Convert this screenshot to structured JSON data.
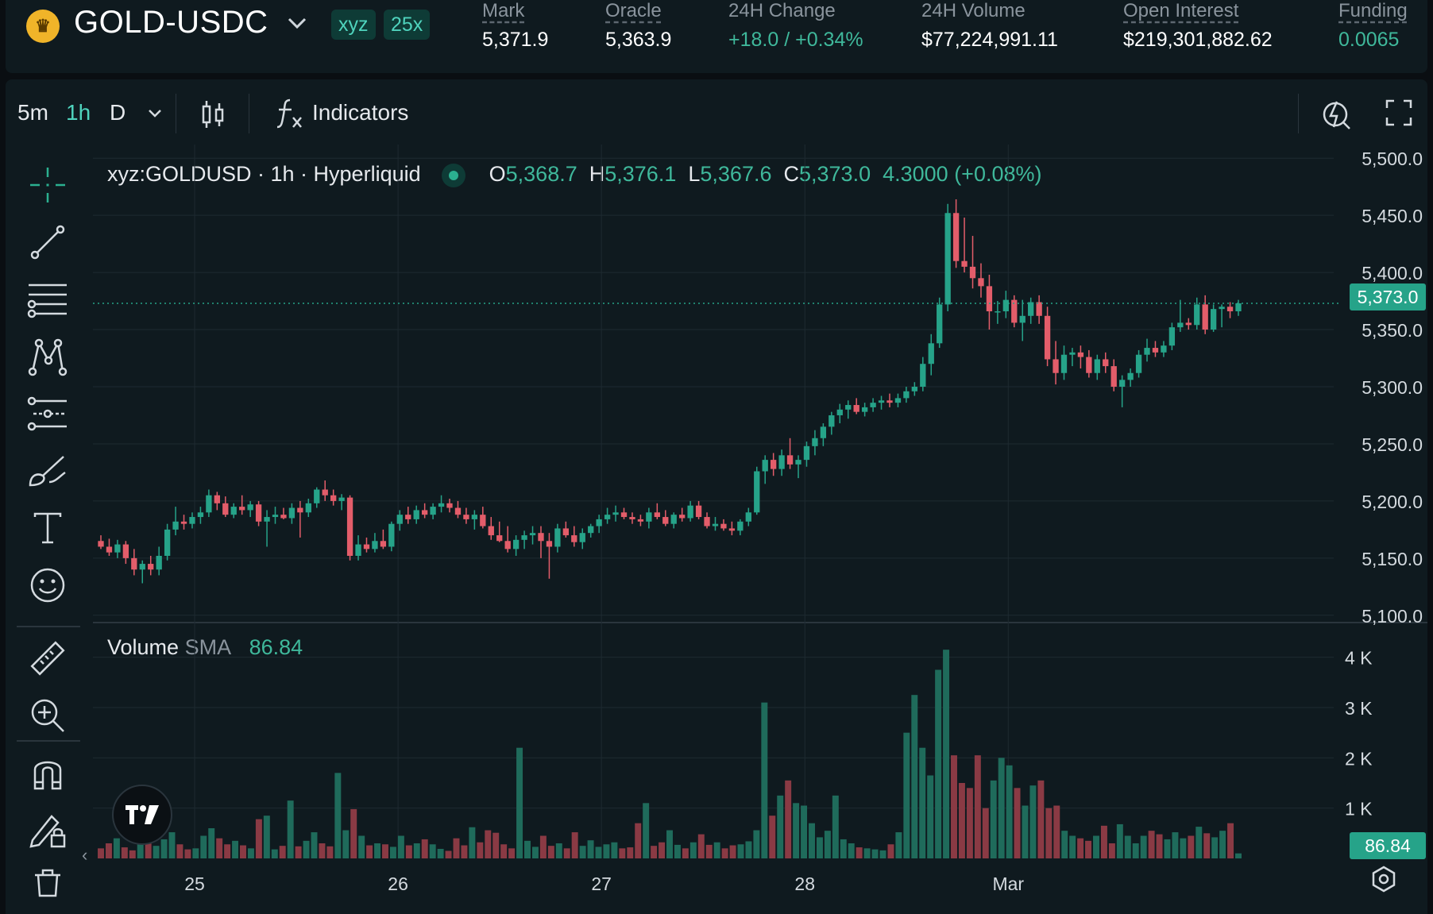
{
  "header": {
    "pair": "GOLD-USDC",
    "tags": [
      "xyz",
      "25x"
    ],
    "stats": [
      {
        "label": "Mark",
        "value": "5,371.9"
      },
      {
        "label": "Oracle",
        "value": "5,363.9"
      },
      {
        "label": "24H Change",
        "value": "+18.0 / +0.34%"
      },
      {
        "label": "24H Volume",
        "value": "$77,224,991.11"
      },
      {
        "label": "Open Interest",
        "value": "$219,301,882.62"
      },
      {
        "label": "Funding",
        "value": "0.0065"
      }
    ]
  },
  "toolbar": {
    "intervals": [
      "5m",
      "1h",
      "D"
    ],
    "active_interval": "1h",
    "indicators_label": "Indicators"
  },
  "legend": {
    "symbol": "xyz:GOLDUSD · 1h · Hyperliquid",
    "o_label": "O",
    "o": "5,368.7",
    "h_label": "H",
    "h": "5,376.1",
    "l_label": "L",
    "l": "5,367.6",
    "c_label": "C",
    "c": "5,373.0",
    "change": "4.3000 (+0.08%)"
  },
  "volume_legend": {
    "label": "Volume",
    "sma_label": "SMA",
    "sma": "86.84"
  },
  "colors": {
    "up": "#26a389",
    "down": "#e35d6a",
    "bg": "#0f1a1f",
    "accent": "#4fd3bd"
  },
  "icons": [
    "crosshair-icon",
    "trend-line-icon",
    "fib-lines-icon",
    "pattern-icon",
    "forecast-icon",
    "brush-icon",
    "text-icon",
    "emoji-icon",
    "ruler-icon",
    "zoom-in-icon",
    "magnet-icon",
    "lock-drawing-icon",
    "candles-icon",
    "fx-icon",
    "lightning-icon",
    "fullscreen-icon",
    "settings-icon",
    "tradingview-logo-icon"
  ],
  "chart_data": [
    {
      "type": "candlestick",
      "x_ticks": [
        "25",
        "26",
        "27",
        "28",
        "Mar"
      ],
      "y_ticks": [
        "5,500.0",
        "5,450.0",
        "5,400.0",
        "5,350.0",
        "5,300.0",
        "5,250.0",
        "5,200.0",
        "5,150.0",
        "5,100.0"
      ],
      "ylim": [
        5095,
        5505
      ],
      "last_price": 5373.0,
      "last_price_label": "5,373.0",
      "x_range_days": [
        24.5,
        30.6
      ],
      "candles": [
        {
          "o": 5165,
          "h": 5170,
          "l": 5158,
          "c": 5160
        },
        {
          "o": 5160,
          "h": 5167,
          "l": 5152,
          "c": 5155
        },
        {
          "o": 5155,
          "h": 5166,
          "l": 5150,
          "c": 5162
        },
        {
          "o": 5162,
          "h": 5165,
          "l": 5145,
          "c": 5150
        },
        {
          "o": 5150,
          "h": 5158,
          "l": 5135,
          "c": 5140
        },
        {
          "o": 5140,
          "h": 5148,
          "l": 5128,
          "c": 5145
        },
        {
          "o": 5145,
          "h": 5152,
          "l": 5135,
          "c": 5140
        },
        {
          "o": 5140,
          "h": 5160,
          "l": 5135,
          "c": 5152
        },
        {
          "o": 5152,
          "h": 5180,
          "l": 5148,
          "c": 5175
        },
        {
          "o": 5175,
          "h": 5195,
          "l": 5170,
          "c": 5182
        },
        {
          "o": 5182,
          "h": 5188,
          "l": 5175,
          "c": 5180
        },
        {
          "o": 5180,
          "h": 5190,
          "l": 5176,
          "c": 5186
        },
        {
          "o": 5186,
          "h": 5195,
          "l": 5180,
          "c": 5190
        },
        {
          "o": 5190,
          "h": 5210,
          "l": 5186,
          "c": 5205
        },
        {
          "o": 5205,
          "h": 5208,
          "l": 5192,
          "c": 5198
        },
        {
          "o": 5198,
          "h": 5204,
          "l": 5186,
          "c": 5188
        },
        {
          "o": 5188,
          "h": 5198,
          "l": 5185,
          "c": 5195
        },
        {
          "o": 5195,
          "h": 5205,
          "l": 5188,
          "c": 5192
        },
        {
          "o": 5192,
          "h": 5200,
          "l": 5186,
          "c": 5197
        },
        {
          "o": 5197,
          "h": 5200,
          "l": 5178,
          "c": 5182
        },
        {
          "o": 5182,
          "h": 5192,
          "l": 5160,
          "c": 5186
        },
        {
          "o": 5186,
          "h": 5195,
          "l": 5180,
          "c": 5188
        },
        {
          "o": 5188,
          "h": 5194,
          "l": 5184,
          "c": 5185
        },
        {
          "o": 5185,
          "h": 5198,
          "l": 5180,
          "c": 5194
        },
        {
          "o": 5194,
          "h": 5200,
          "l": 5168,
          "c": 5190
        },
        {
          "o": 5190,
          "h": 5202,
          "l": 5186,
          "c": 5198
        },
        {
          "o": 5198,
          "h": 5212,
          "l": 5194,
          "c": 5210
        },
        {
          "o": 5210,
          "h": 5218,
          "l": 5200,
          "c": 5205
        },
        {
          "o": 5205,
          "h": 5210,
          "l": 5196,
          "c": 5200
        },
        {
          "o": 5200,
          "h": 5206,
          "l": 5192,
          "c": 5203
        },
        {
          "o": 5203,
          "h": 5205,
          "l": 5148,
          "c": 5152
        },
        {
          "o": 5152,
          "h": 5170,
          "l": 5148,
          "c": 5162
        },
        {
          "o": 5162,
          "h": 5168,
          "l": 5155,
          "c": 5158
        },
        {
          "o": 5158,
          "h": 5172,
          "l": 5155,
          "c": 5165
        },
        {
          "o": 5165,
          "h": 5175,
          "l": 5158,
          "c": 5160
        },
        {
          "o": 5160,
          "h": 5182,
          "l": 5156,
          "c": 5180
        },
        {
          "o": 5180,
          "h": 5192,
          "l": 5174,
          "c": 5188
        },
        {
          "o": 5188,
          "h": 5195,
          "l": 5180,
          "c": 5184
        },
        {
          "o": 5184,
          "h": 5196,
          "l": 5180,
          "c": 5192
        },
        {
          "o": 5192,
          "h": 5198,
          "l": 5185,
          "c": 5188
        },
        {
          "o": 5188,
          "h": 5198,
          "l": 5184,
          "c": 5195
        },
        {
          "o": 5195,
          "h": 5205,
          "l": 5190,
          "c": 5198
        },
        {
          "o": 5198,
          "h": 5202,
          "l": 5190,
          "c": 5194
        },
        {
          "o": 5194,
          "h": 5200,
          "l": 5185,
          "c": 5188
        },
        {
          "o": 5188,
          "h": 5194,
          "l": 5180,
          "c": 5184
        },
        {
          "o": 5184,
          "h": 5192,
          "l": 5175,
          "c": 5188
        },
        {
          "o": 5188,
          "h": 5195,
          "l": 5176,
          "c": 5178
        },
        {
          "o": 5178,
          "h": 5186,
          "l": 5166,
          "c": 5170
        },
        {
          "o": 5170,
          "h": 5182,
          "l": 5164,
          "c": 5165
        },
        {
          "o": 5165,
          "h": 5178,
          "l": 5155,
          "c": 5158
        },
        {
          "o": 5158,
          "h": 5170,
          "l": 5152,
          "c": 5166
        },
        {
          "o": 5166,
          "h": 5174,
          "l": 5158,
          "c": 5170
        },
        {
          "o": 5170,
          "h": 5178,
          "l": 5162,
          "c": 5172
        },
        {
          "o": 5172,
          "h": 5178,
          "l": 5150,
          "c": 5165
        },
        {
          "o": 5165,
          "h": 5172,
          "l": 5132,
          "c": 5160
        },
        {
          "o": 5160,
          "h": 5180,
          "l": 5155,
          "c": 5176
        },
        {
          "o": 5176,
          "h": 5182,
          "l": 5168,
          "c": 5170
        },
        {
          "o": 5170,
          "h": 5178,
          "l": 5160,
          "c": 5164
        },
        {
          "o": 5164,
          "h": 5176,
          "l": 5158,
          "c": 5172
        },
        {
          "o": 5172,
          "h": 5180,
          "l": 5168,
          "c": 5178
        },
        {
          "o": 5178,
          "h": 5188,
          "l": 5172,
          "c": 5184
        },
        {
          "o": 5184,
          "h": 5194,
          "l": 5180,
          "c": 5188
        },
        {
          "o": 5188,
          "h": 5196,
          "l": 5182,
          "c": 5190
        },
        {
          "o": 5190,
          "h": 5194,
          "l": 5184,
          "c": 5186
        },
        {
          "o": 5186,
          "h": 5190,
          "l": 5180,
          "c": 5184
        },
        {
          "o": 5184,
          "h": 5188,
          "l": 5178,
          "c": 5182
        },
        {
          "o": 5182,
          "h": 5194,
          "l": 5176,
          "c": 5190
        },
        {
          "o": 5190,
          "h": 5198,
          "l": 5184,
          "c": 5186
        },
        {
          "o": 5186,
          "h": 5192,
          "l": 5178,
          "c": 5180
        },
        {
          "o": 5180,
          "h": 5190,
          "l": 5176,
          "c": 5188
        },
        {
          "o": 5188,
          "h": 5194,
          "l": 5182,
          "c": 5185
        },
        {
          "o": 5185,
          "h": 5200,
          "l": 5182,
          "c": 5196
        },
        {
          "o": 5196,
          "h": 5200,
          "l": 5184,
          "c": 5186
        },
        {
          "o": 5186,
          "h": 5190,
          "l": 5176,
          "c": 5178
        },
        {
          "o": 5178,
          "h": 5186,
          "l": 5174,
          "c": 5180
        },
        {
          "o": 5180,
          "h": 5184,
          "l": 5174,
          "c": 5176
        },
        {
          "o": 5176,
          "h": 5182,
          "l": 5170,
          "c": 5174
        },
        {
          "o": 5174,
          "h": 5184,
          "l": 5170,
          "c": 5182
        },
        {
          "o": 5182,
          "h": 5194,
          "l": 5178,
          "c": 5190
        },
        {
          "o": 5190,
          "h": 5230,
          "l": 5188,
          "c": 5226
        },
        {
          "o": 5226,
          "h": 5240,
          "l": 5215,
          "c": 5236
        },
        {
          "o": 5236,
          "h": 5242,
          "l": 5222,
          "c": 5228
        },
        {
          "o": 5228,
          "h": 5245,
          "l": 5222,
          "c": 5240
        },
        {
          "o": 5240,
          "h": 5255,
          "l": 5228,
          "c": 5232
        },
        {
          "o": 5232,
          "h": 5240,
          "l": 5220,
          "c": 5236
        },
        {
          "o": 5236,
          "h": 5252,
          "l": 5230,
          "c": 5248
        },
        {
          "o": 5248,
          "h": 5262,
          "l": 5240,
          "c": 5255
        },
        {
          "o": 5255,
          "h": 5268,
          "l": 5248,
          "c": 5265
        },
        {
          "o": 5265,
          "h": 5278,
          "l": 5258,
          "c": 5275
        },
        {
          "o": 5275,
          "h": 5285,
          "l": 5268,
          "c": 5280
        },
        {
          "o": 5280,
          "h": 5288,
          "l": 5272,
          "c": 5284
        },
        {
          "o": 5284,
          "h": 5290,
          "l": 5276,
          "c": 5278
        },
        {
          "o": 5278,
          "h": 5286,
          "l": 5274,
          "c": 5282
        },
        {
          "o": 5282,
          "h": 5290,
          "l": 5278,
          "c": 5286
        },
        {
          "o": 5286,
          "h": 5292,
          "l": 5280,
          "c": 5288
        },
        {
          "o": 5288,
          "h": 5294,
          "l": 5282,
          "c": 5286
        },
        {
          "o": 5286,
          "h": 5294,
          "l": 5282,
          "c": 5290
        },
        {
          "o": 5290,
          "h": 5300,
          "l": 5286,
          "c": 5296
        },
        {
          "o": 5296,
          "h": 5304,
          "l": 5292,
          "c": 5300
        },
        {
          "o": 5300,
          "h": 5326,
          "l": 5296,
          "c": 5320
        },
        {
          "o": 5320,
          "h": 5346,
          "l": 5310,
          "c": 5338
        },
        {
          "o": 5338,
          "h": 5378,
          "l": 5334,
          "c": 5372
        },
        {
          "o": 5372,
          "h": 5460,
          "l": 5366,
          "c": 5452
        },
        {
          "o": 5452,
          "h": 5464,
          "l": 5404,
          "c": 5410
        },
        {
          "o": 5410,
          "h": 5448,
          "l": 5400,
          "c": 5405
        },
        {
          "o": 5405,
          "h": 5432,
          "l": 5386,
          "c": 5395
        },
        {
          "o": 5395,
          "h": 5408,
          "l": 5378,
          "c": 5388
        },
        {
          "o": 5388,
          "h": 5398,
          "l": 5350,
          "c": 5366
        },
        {
          "o": 5366,
          "h": 5375,
          "l": 5355,
          "c": 5366
        },
        {
          "o": 5366,
          "h": 5384,
          "l": 5360,
          "c": 5376
        },
        {
          "o": 5376,
          "h": 5380,
          "l": 5352,
          "c": 5356
        },
        {
          "o": 5356,
          "h": 5376,
          "l": 5340,
          "c": 5362
        },
        {
          "o": 5362,
          "h": 5378,
          "l": 5355,
          "c": 5374
        },
        {
          "o": 5374,
          "h": 5380,
          "l": 5355,
          "c": 5362
        },
        {
          "o": 5362,
          "h": 5370,
          "l": 5318,
          "c": 5324
        },
        {
          "o": 5324,
          "h": 5340,
          "l": 5302,
          "c": 5312
        },
        {
          "o": 5312,
          "h": 5336,
          "l": 5306,
          "c": 5328
        },
        {
          "o": 5328,
          "h": 5334,
          "l": 5318,
          "c": 5330
        },
        {
          "o": 5330,
          "h": 5336,
          "l": 5316,
          "c": 5326
        },
        {
          "o": 5326,
          "h": 5332,
          "l": 5308,
          "c": 5312
        },
        {
          "o": 5312,
          "h": 5328,
          "l": 5306,
          "c": 5324
        },
        {
          "o": 5324,
          "h": 5330,
          "l": 5312,
          "c": 5318
        },
        {
          "o": 5318,
          "h": 5324,
          "l": 5296,
          "c": 5300
        },
        {
          "o": 5300,
          "h": 5310,
          "l": 5282,
          "c": 5306
        },
        {
          "o": 5306,
          "h": 5316,
          "l": 5300,
          "c": 5312
        },
        {
          "o": 5312,
          "h": 5332,
          "l": 5308,
          "c": 5328
        },
        {
          "o": 5328,
          "h": 5342,
          "l": 5322,
          "c": 5334
        },
        {
          "o": 5334,
          "h": 5340,
          "l": 5326,
          "c": 5330
        },
        {
          "o": 5330,
          "h": 5340,
          "l": 5326,
          "c": 5336
        },
        {
          "o": 5336,
          "h": 5356,
          "l": 5332,
          "c": 5352
        },
        {
          "o": 5352,
          "h": 5376,
          "l": 5348,
          "c": 5356
        },
        {
          "o": 5356,
          "h": 5360,
          "l": 5350,
          "c": 5354
        },
        {
          "o": 5354,
          "h": 5378,
          "l": 5350,
          "c": 5372
        },
        {
          "o": 5372,
          "h": 5380,
          "l": 5346,
          "c": 5350
        },
        {
          "o": 5350,
          "h": 5372,
          "l": 5348,
          "c": 5368
        },
        {
          "o": 5368,
          "h": 5372,
          "l": 5352,
          "c": 5370
        },
        {
          "o": 5370,
          "h": 5374,
          "l": 5360,
          "c": 5366
        },
        {
          "o": 5366,
          "h": 5376,
          "l": 5362,
          "c": 5373
        }
      ]
    },
    {
      "type": "bar",
      "title": "Volume",
      "y_ticks": [
        "4 K",
        "3 K",
        "2 K",
        "1 K"
      ],
      "ylim": [
        0,
        4200
      ],
      "last_value_label": "86.84",
      "values": [
        200,
        300,
        400,
        220,
        160,
        350,
        300,
        250,
        380,
        520,
        280,
        180,
        200,
        450,
        600,
        400,
        280,
        350,
        260,
        200,
        780,
        850,
        180,
        250,
        1150,
        240,
        350,
        520,
        300,
        240,
        1700,
        560,
        980,
        450,
        260,
        300,
        280,
        230,
        450,
        260,
        300,
        380,
        280,
        190,
        150,
        400,
        260,
        620,
        320,
        560,
        510,
        280,
        200,
        2200,
        350,
        230,
        450,
        250,
        300,
        200,
        520,
        250,
        360,
        230,
        280,
        320,
        200,
        220,
        700,
        1100,
        250,
        320,
        560,
        270,
        200,
        320,
        480,
        270,
        320,
        200,
        260,
        280,
        340,
        560,
        3100,
        850,
        1250,
        1550,
        1100,
        1050,
        700,
        420,
        550,
        1250,
        380,
        300,
        220,
        200,
        180,
        160,
        280,
        520,
        2500,
        3250,
        2200,
        1650,
        3750,
        4150,
        2050,
        1500,
        1400,
        2050,
        1000,
        1550,
        2000,
        1850,
        1400,
        1050,
        1450,
        1550,
        1000,
        1050,
        550,
        450,
        400,
        350,
        450,
        650,
        300,
        680,
        450,
        300,
        450,
        550,
        480,
        380,
        520,
        400,
        450,
        630,
        500,
        420,
        550,
        700,
        100
      ]
    }
  ]
}
